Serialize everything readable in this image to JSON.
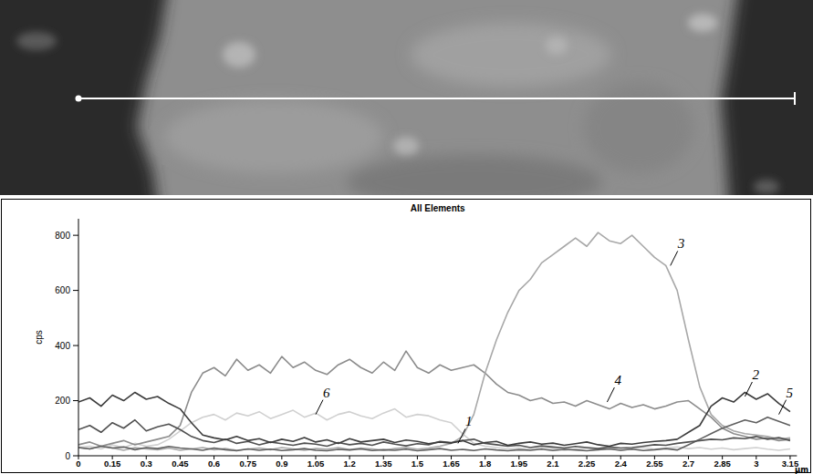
{
  "chart_data": {
    "type": "line",
    "title": "All Elements",
    "y_label": "cps",
    "x_label": "µm",
    "x": [
      0,
      0.05,
      0.1,
      0.15,
      0.2,
      0.25,
      0.3,
      0.35,
      0.4,
      0.45,
      0.5,
      0.55,
      0.6,
      0.65,
      0.7,
      0.75,
      0.8,
      0.85,
      0.9,
      0.95,
      1,
      1.05,
      1.1,
      1.15,
      1.2,
      1.25,
      1.3,
      1.35,
      1.4,
      1.45,
      1.5,
      1.55,
      1.6,
      1.65,
      1.7,
      1.75,
      1.8,
      1.85,
      1.9,
      1.95,
      2,
      2.05,
      2.1,
      2.15,
      2.2,
      2.25,
      2.3,
      2.35,
      2.4,
      2.45,
      2.5,
      2.55,
      2.6,
      2.65,
      2.7,
      2.75,
      2.8,
      2.85,
      2.9,
      2.95,
      3,
      3.05,
      3.1,
      3.15
    ],
    "xlim": [
      0,
      3.18
    ],
    "xticks": [
      0,
      0.15,
      0.3,
      0.45,
      0.6,
      0.75,
      0.9,
      1.05,
      1.2,
      1.35,
      1.5,
      1.65,
      1.8,
      1.95,
      2.1,
      2.25,
      2.4,
      2.55,
      2.7,
      2.85,
      3,
      3.15
    ],
    "ylim": [
      0,
      860
    ],
    "yticks": [
      0,
      200,
      400,
      600,
      800
    ],
    "grid": false,
    "series": [
      {
        "color": "#d0d0d0",
        "values": [
          30,
          35,
          25,
          40,
          30,
          45,
          35,
          40,
          60,
          90,
          120,
          140,
          150,
          130,
          155,
          145,
          160,
          135,
          150,
          165,
          140,
          155,
          130,
          150,
          160,
          145,
          135,
          155,
          170,
          140,
          150,
          145,
          130,
          120,
          80,
          45,
          35,
          30,
          25,
          28,
          22,
          30,
          26,
          20,
          24,
          28,
          22,
          26,
          20,
          25,
          30,
          24,
          28,
          32,
          26,
          30,
          24,
          28,
          22,
          26,
          30,
          24,
          20,
          25
        ]
      },
      {
        "color": "#8c8c8c",
        "values": [
          40,
          50,
          35,
          45,
          55,
          40,
          50,
          60,
          70,
          110,
          230,
          300,
          320,
          290,
          350,
          310,
          330,
          300,
          360,
          320,
          340,
          310,
          295,
          330,
          350,
          320,
          300,
          340,
          310,
          380,
          320,
          300,
          330,
          310,
          320,
          330,
          300,
          260,
          230,
          220,
          200,
          210,
          190,
          195,
          180,
          200,
          185,
          170,
          190,
          175,
          185,
          170,
          180,
          195,
          200,
          170,
          140,
          100,
          80,
          70,
          60,
          65,
          55,
          60
        ]
      },
      {
        "color": "#a8a8a8",
        "values": [
          30,
          25,
          35,
          28,
          20,
          30,
          25,
          22,
          28,
          20,
          25,
          30,
          22,
          26,
          20,
          24,
          28,
          22,
          30,
          25,
          20,
          26,
          24,
          30,
          22,
          28,
          25,
          20,
          26,
          30,
          24,
          28,
          35,
          45,
          70,
          150,
          300,
          420,
          520,
          600,
          640,
          700,
          730,
          760,
          790,
          760,
          810,
          780,
          770,
          800,
          760,
          720,
          690,
          600,
          420,
          250,
          150,
          110,
          90,
          80,
          75,
          70,
          60,
          65
        ]
      },
      {
        "color": "#606060",
        "values": [
          30,
          25,
          35,
          28,
          32,
          22,
          30,
          26,
          34,
          28,
          25,
          20,
          28,
          22,
          18,
          25,
          20,
          24,
          19,
          22,
          26,
          20,
          18,
          23,
          21,
          25,
          19,
          22,
          20,
          24,
          18,
          22,
          26,
          20,
          23,
          19,
          25,
          21,
          18,
          22,
          20,
          24,
          19,
          23,
          21,
          18,
          22,
          25,
          20,
          24,
          19,
          22,
          26,
          21,
          40,
          60,
          80,
          100,
          115,
          130,
          120,
          140,
          125,
          110
        ]
      },
      {
        "color": "#505050",
        "values": [
          95,
          110,
          85,
          120,
          100,
          130,
          90,
          105,
          115,
          95,
          70,
          55,
          48,
          60,
          45,
          52,
          40,
          50,
          44,
          38,
          46,
          42,
          35,
          48,
          40,
          45,
          38,
          50,
          42,
          36,
          44,
          40,
          52,
          48,
          55,
          60,
          45,
          40,
          35,
          38,
          30,
          36,
          32,
          28,
          34,
          30,
          26,
          32,
          28,
          30,
          35,
          40,
          38,
          45,
          50,
          55,
          60,
          58,
          65,
          62,
          70,
          60,
          66,
          55
        ]
      },
      {
        "color": "#3c3c3c",
        "values": [
          195,
          210,
          180,
          220,
          200,
          230,
          205,
          215,
          190,
          170,
          120,
          75,
          65,
          58,
          70,
          55,
          62,
          48,
          60,
          52,
          66,
          50,
          58,
          45,
          62,
          50,
          55,
          60,
          48,
          57,
          52,
          44,
          50,
          46,
          55,
          40,
          48,
          52,
          38,
          45,
          50,
          42,
          46,
          38,
          44,
          50,
          40,
          35,
          45,
          42,
          48,
          52,
          55,
          60,
          85,
          110,
          180,
          210,
          195,
          230,
          205,
          225,
          190,
          160
        ]
      }
    ],
    "annotations": [
      {
        "text": "1",
        "x": 1.68,
        "y": 45
      },
      {
        "text": "2",
        "x": 2.95,
        "y": 215
      },
      {
        "text": "3",
        "x": 2.62,
        "y": 690
      },
      {
        "text": "4",
        "x": 2.34,
        "y": 195
      },
      {
        "text": "5",
        "x": 3.1,
        "y": 150
      },
      {
        "text": "6",
        "x": 1.05,
        "y": 150
      }
    ]
  }
}
